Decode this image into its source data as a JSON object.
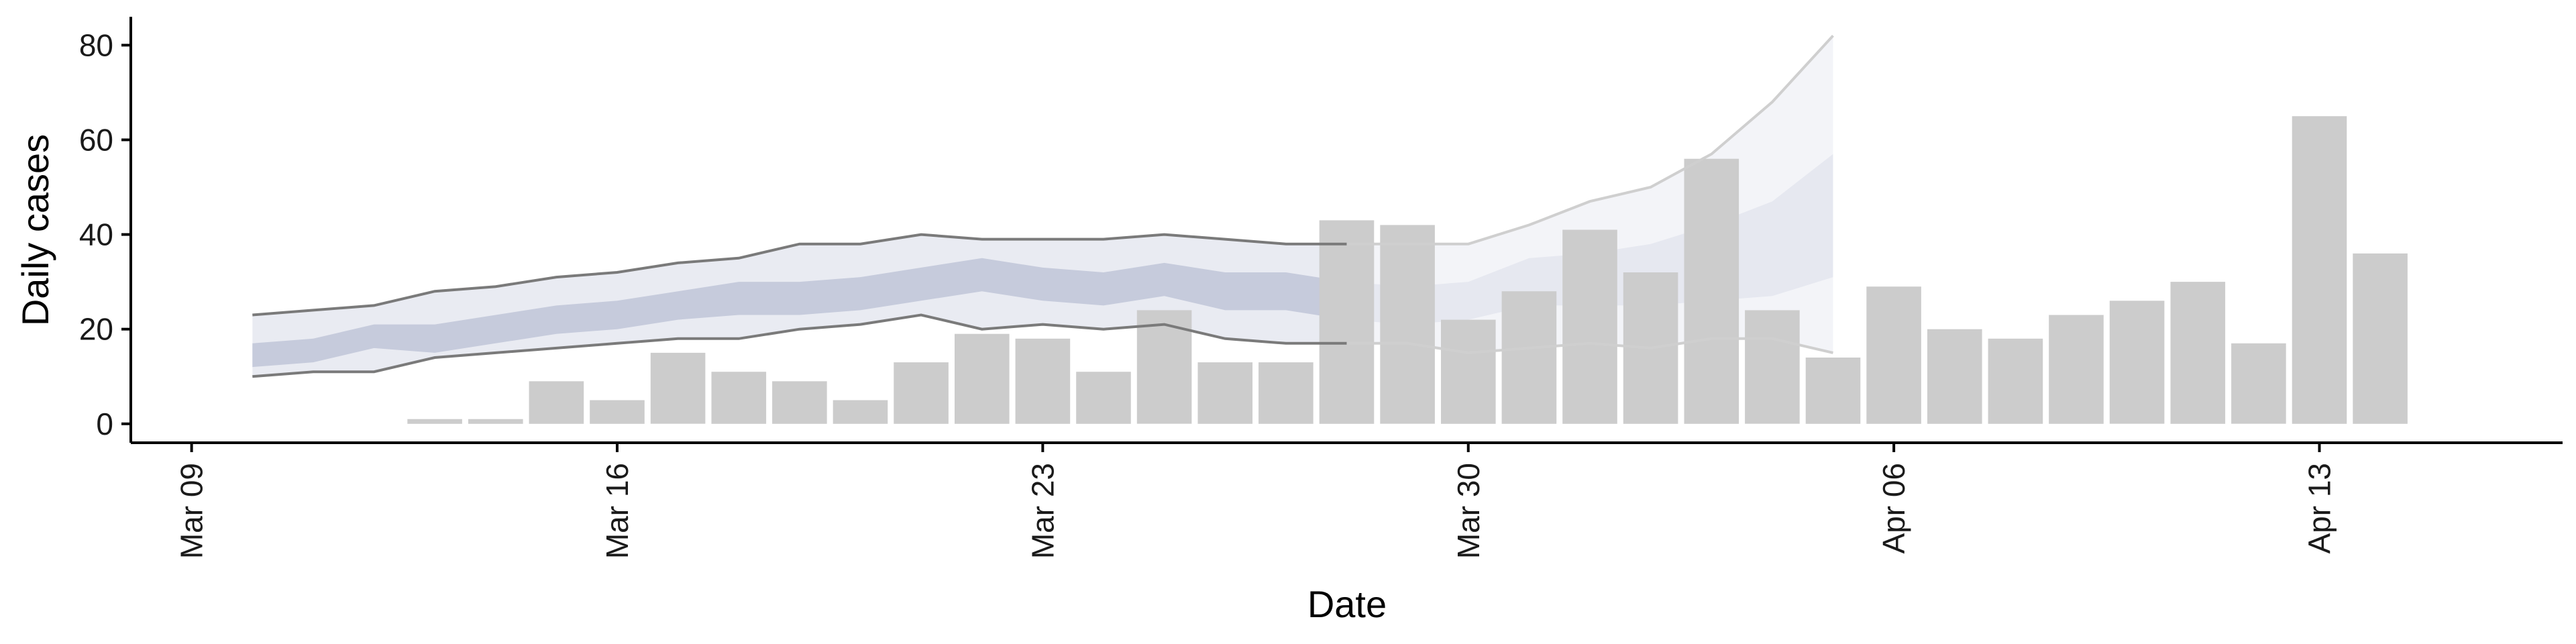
{
  "chart_data": {
    "type": "bar",
    "xlabel": "Date",
    "ylabel": "Daily cases",
    "xlim": [
      "2020-03-08",
      "2020-04-17"
    ],
    "ylim": [
      -4,
      86
    ],
    "x_ticks": [
      {
        "date": "2020-03-09",
        "label": "Mar 09"
      },
      {
        "date": "2020-03-16",
        "label": "Mar 16"
      },
      {
        "date": "2020-03-23",
        "label": "Mar 23"
      },
      {
        "date": "2020-03-30",
        "label": "Mar 30"
      },
      {
        "date": "2020-04-06",
        "label": "Apr 06"
      },
      {
        "date": "2020-04-13",
        "label": "Apr 13"
      }
    ],
    "y_ticks": [
      0,
      20,
      40,
      60,
      80
    ],
    "grid": false,
    "colors": {
      "bars": "#cccccc",
      "band_outer": "#e9ebf2",
      "band_inner": "#c6cbdc",
      "band_projection_outer": "#f3f4f8",
      "band_projection_inner": "#e6e8f0",
      "bound_line": "#7a7a7a",
      "bound_line_projection": "#cfcfcf"
    },
    "bars": [
      {
        "date": "2020-03-13",
        "value": 1
      },
      {
        "date": "2020-03-14",
        "value": 1
      },
      {
        "date": "2020-03-15",
        "value": 9
      },
      {
        "date": "2020-03-16",
        "value": 5
      },
      {
        "date": "2020-03-17",
        "value": 15
      },
      {
        "date": "2020-03-18",
        "value": 11
      },
      {
        "date": "2020-03-19",
        "value": 9
      },
      {
        "date": "2020-03-20",
        "value": 5
      },
      {
        "date": "2020-03-21",
        "value": 13
      },
      {
        "date": "2020-03-22",
        "value": 19
      },
      {
        "date": "2020-03-23",
        "value": 18
      },
      {
        "date": "2020-03-24",
        "value": 11
      },
      {
        "date": "2020-03-25",
        "value": 24
      },
      {
        "date": "2020-03-26",
        "value": 13
      },
      {
        "date": "2020-03-27",
        "value": 13
      },
      {
        "date": "2020-03-28",
        "value": 43
      },
      {
        "date": "2020-03-29",
        "value": 42
      },
      {
        "date": "2020-03-30",
        "value": 22
      },
      {
        "date": "2020-03-31",
        "value": 28
      },
      {
        "date": "2020-04-01",
        "value": 41
      },
      {
        "date": "2020-04-02",
        "value": 32
      },
      {
        "date": "2020-04-03",
        "value": 56
      },
      {
        "date": "2020-04-04",
        "value": 24
      },
      {
        "date": "2020-04-05",
        "value": 14
      },
      {
        "date": "2020-04-06",
        "value": 29
      },
      {
        "date": "2020-04-07",
        "value": 20
      },
      {
        "date": "2020-04-08",
        "value": 18
      },
      {
        "date": "2020-04-09",
        "value": 23
      },
      {
        "date": "2020-04-10",
        "value": 26
      },
      {
        "date": "2020-04-11",
        "value": 30
      },
      {
        "date": "2020-04-12",
        "value": 17
      },
      {
        "date": "2020-04-13",
        "value": 65
      },
      {
        "date": "2020-04-14",
        "value": 36
      }
    ],
    "estimate": {
      "dates": [
        "2020-03-10",
        "2020-03-11",
        "2020-03-12",
        "2020-03-13",
        "2020-03-14",
        "2020-03-15",
        "2020-03-16",
        "2020-03-17",
        "2020-03-18",
        "2020-03-19",
        "2020-03-20",
        "2020-03-21",
        "2020-03-22",
        "2020-03-23",
        "2020-03-24",
        "2020-03-25",
        "2020-03-26",
        "2020-03-27",
        "2020-03-28",
        "2020-03-29",
        "2020-03-30",
        "2020-03-31",
        "2020-04-01",
        "2020-04-02",
        "2020-04-03",
        "2020-04-04",
        "2020-04-05"
      ],
      "upper_90": [
        23,
        24,
        25,
        28,
        29,
        31,
        32,
        34,
        35,
        38,
        38,
        40,
        39,
        39,
        39,
        40,
        39,
        38,
        38,
        38,
        38,
        42,
        47,
        50,
        57,
        68,
        82
      ],
      "upper_50": [
        17,
        18,
        21,
        21,
        23,
        25,
        26,
        28,
        30,
        30,
        31,
        33,
        35,
        33,
        32,
        34,
        32,
        32,
        30,
        29,
        30,
        35,
        36,
        38,
        42,
        47,
        57
      ],
      "lower_50": [
        12,
        13,
        16,
        15,
        17,
        19,
        20,
        22,
        23,
        23,
        24,
        26,
        28,
        26,
        25,
        27,
        24,
        24,
        22,
        21,
        22,
        25,
        25,
        25,
        26,
        27,
        31
      ],
      "lower_90": [
        10,
        11,
        11,
        14,
        15,
        16,
        17,
        18,
        18,
        20,
        21,
        23,
        20,
        21,
        20,
        21,
        18,
        17,
        17,
        17,
        15,
        16,
        17,
        16,
        18,
        18,
        15
      ],
      "projection_from": "2020-03-28"
    }
  }
}
